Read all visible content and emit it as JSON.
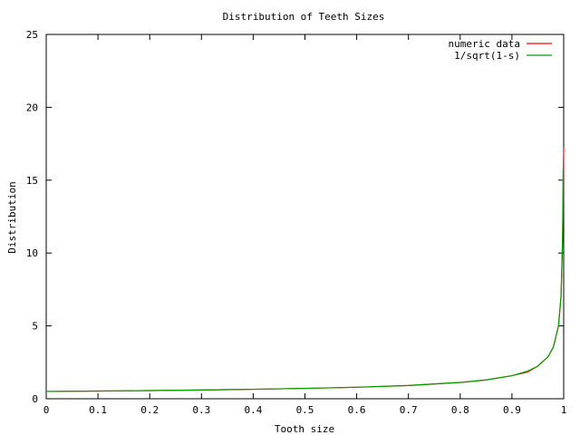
{
  "chart_data": {
    "type": "line",
    "title": "Distribution of Teeth Sizes",
    "xlabel": "Tooth size",
    "ylabel": "Distribution",
    "xlim": [
      0,
      1
    ],
    "ylim": [
      0,
      25
    ],
    "x_ticks": [
      "0",
      "0.1",
      "0.2",
      "0.3",
      "0.4",
      "0.5",
      "0.6",
      "0.7",
      "0.8",
      "0.9",
      "1"
    ],
    "y_ticks": [
      "0",
      "5",
      "10",
      "15",
      "20",
      "25"
    ],
    "grid": false,
    "legend_position": "top-right",
    "series": [
      {
        "name": "numeric data",
        "color": "#ff0000",
        "x": [
          0,
          0.1,
          0.2,
          0.3,
          0.4,
          0.5,
          0.6,
          0.7,
          0.8,
          0.85,
          0.9,
          0.93,
          0.95,
          0.97,
          0.98,
          0.99,
          0.995,
          0.998,
          0.999,
          1.0
        ],
        "y": [
          0.5,
          0.53,
          0.56,
          0.6,
          0.65,
          0.71,
          0.79,
          0.91,
          1.12,
          1.29,
          1.58,
          1.83,
          2.24,
          2.89,
          3.54,
          5.0,
          7.07,
          11.2,
          13.8,
          17.3
        ]
      },
      {
        "name": "1/sqrt(1-s)",
        "color": "#00a000",
        "x": [
          0,
          0.1,
          0.2,
          0.3,
          0.4,
          0.5,
          0.6,
          0.7,
          0.8,
          0.85,
          0.9,
          0.93,
          0.95,
          0.97,
          0.98,
          0.99,
          0.995,
          0.998,
          0.999
        ],
        "y": [
          0.5,
          0.53,
          0.56,
          0.6,
          0.65,
          0.71,
          0.79,
          0.91,
          1.12,
          1.29,
          1.58,
          1.89,
          2.24,
          2.89,
          3.54,
          5.0,
          7.07,
          11.2,
          15.8
        ]
      }
    ]
  }
}
